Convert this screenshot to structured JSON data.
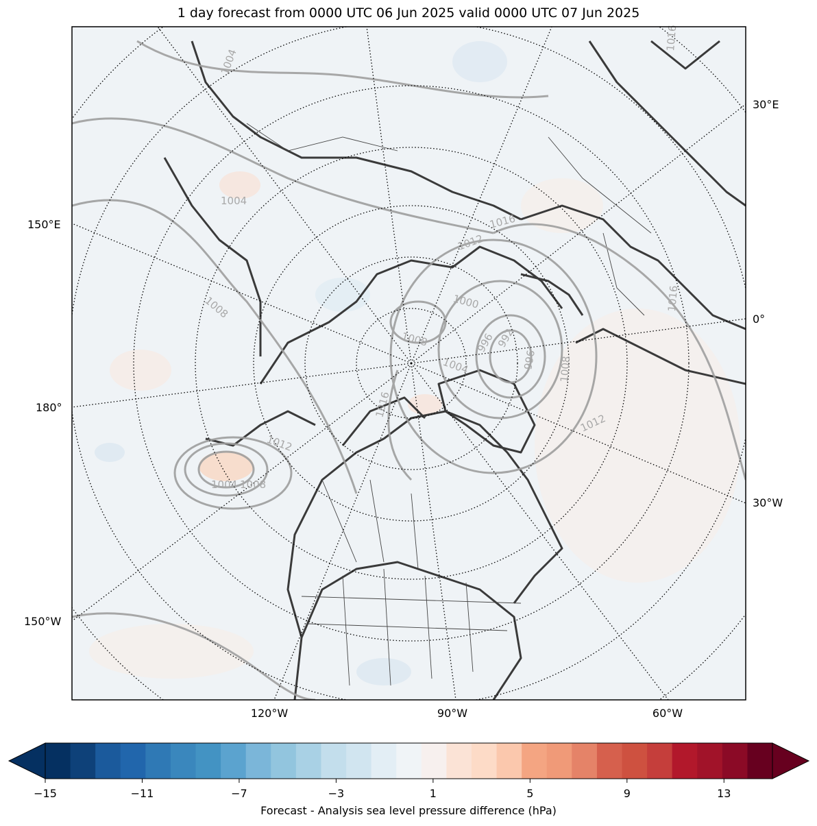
{
  "title": "1 day forecast from 0000 UTC 06 Jun 2025 valid 0000 UTC 07 Jun 2025",
  "longitude_labels": {
    "e30": "30°E",
    "e150": "150°E",
    "zero": "0°",
    "d180": "180°",
    "w30": "30°W",
    "w150": "150°W",
    "w120": "120°W",
    "w90": "90°W",
    "w60": "60°W"
  },
  "isobar_labels": [
    "1004",
    "1004",
    "1008",
    "1012",
    "1016",
    "1016",
    "1000",
    "1008",
    "996",
    "992",
    "996",
    "1004",
    "1008",
    "1012",
    "1016",
    "1016",
    "1008",
    "1004",
    "1012"
  ],
  "colorbar": {
    "label": "Forecast - Analysis sea level pressure difference (hPa)",
    "ticks": [
      "−15",
      "−11",
      "−7",
      "−3",
      "1",
      "5",
      "9",
      "13"
    ],
    "colors": [
      "#053061",
      "#0e4179",
      "#1b5a9c",
      "#2166ac",
      "#2f79b5",
      "#3a87bd",
      "#4393c3",
      "#5ba3cf",
      "#7bb6d9",
      "#92c5de",
      "#a9d1e5",
      "#c3deec",
      "#d1e5f0",
      "#e3eef5",
      "#f0f4f7",
      "#f7f0ee",
      "#fbe3d6",
      "#fddbc7",
      "#fbc8ad",
      "#f4a582",
      "#f09a78",
      "#e58368",
      "#d6604d",
      "#ce5140",
      "#c53e3b",
      "#b2182b",
      "#a11329",
      "#8b0a26",
      "#67001f"
    ],
    "min_color": "#053061",
    "max_color": "#67001f"
  }
}
